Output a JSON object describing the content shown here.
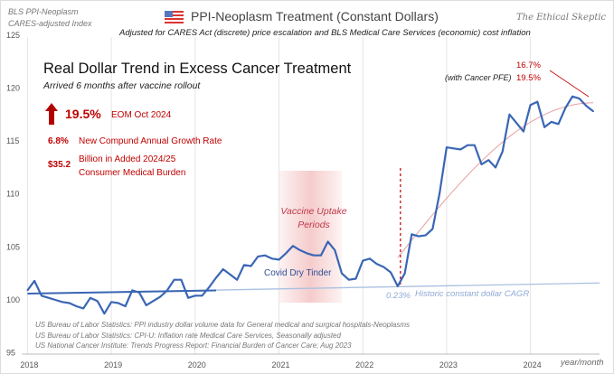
{
  "header": {
    "corner_label_1": "BLS PPI-Neoplasm",
    "corner_label_2": "CARES-adjusted Index",
    "title": "PPI-Neoplasm  Treatment",
    "title_suffix": "(Constant Dollars)",
    "subtitle": "Adjusted for CARES Act (discrete)  price escalation and BLS Medical Care Services (economic) cost inflation",
    "brand": "The Ethical Skeptic",
    "flag_icon": "us-flag-icon"
  },
  "annotations": {
    "headline": "Real Dollar Trend in Excess Cancer Treatment",
    "headline_sub": "Arrived 6 months after vaccine rollout",
    "big_pct": "19.5%",
    "big_pct_label": "EOM Oct 2024",
    "cagr_value": "6.8%",
    "cagr_label": "New Compund Annual Growth Rate",
    "burden_value": "$35.2",
    "burden_label_1": "Billion in Added 2024/25",
    "burden_label_2": "Consumer Medical Burden",
    "pfe_pct_1": "16.7%",
    "pfe_label": "(with Cancer PFE)",
    "pfe_pct_2": "19.5%",
    "vaccine_label_1": "Vaccine Uptake",
    "vaccine_label_2": "Periods",
    "covid_label": "Covid Dry Tinder",
    "cagr_hist_value": "0.23%",
    "cagr_hist_label": "Historic constant dollar CAGR",
    "source_1": "US Bureau of Labor Statistics: PPI industry dollar volume data for General medical and surgical hospitals-Neoplasms",
    "source_2": "US Bureau of Labor Statistics: CPI-U: Inflation rate Medical Care Services, Seasonally adjusted",
    "source_3": "US National Cancer Institute: Trends Progress Report: Financial Burden of Cancer Care; Aug 2023",
    "xaxis_unit": "year/month"
  },
  "colors": {
    "line": "#3a66b5",
    "accent": "#c00000",
    "band": "#f4c6c6",
    "cagr": "#aac0e0",
    "trend": "#e8a0a0"
  },
  "chart_data": {
    "type": "line",
    "title": "PPI-Neoplasm Treatment (Constant Dollars)",
    "xlabel": "year/month",
    "ylabel": "BLS PPI-Neoplasm CARES-adjusted Index",
    "ylim": [
      95,
      125
    ],
    "yticks": [
      "95",
      "100",
      "105",
      "110",
      "115",
      "120",
      "125"
    ],
    "xticks": [
      "2018",
      "2019",
      "2020",
      "2021",
      "2022",
      "2023",
      "2024"
    ],
    "start": "2018-01",
    "series": [
      {
        "name": "PPI-Neoplasm (constant dollars)",
        "values": [
          100.9,
          101.8,
          100.4,
          100.2,
          100.0,
          99.8,
          99.7,
          99.4,
          99.2,
          100.2,
          99.9,
          98.7,
          99.8,
          99.7,
          99.4,
          100.9,
          100.7,
          99.5,
          99.9,
          100.3,
          100.9,
          101.9,
          101.9,
          100.2,
          100.4,
          100.4,
          101.2,
          102.1,
          102.9,
          102.4,
          101.9,
          103.3,
          103.2,
          104.1,
          104.2,
          103.9,
          103.8,
          104.4,
          105.1,
          104.7,
          104.4,
          104.2,
          104.2,
          105.5,
          104.7,
          102.5,
          101.9,
          102.0,
          103.7,
          103.9,
          103.4,
          103.1,
          102.6,
          101.3,
          102.5,
          106.2,
          106.0,
          106.1,
          106.7,
          110.1,
          114.4,
          114.3,
          114.2,
          114.6,
          114.6,
          112.8,
          113.2,
          112.5,
          114.0,
          117.5,
          116.7,
          115.9,
          118.4,
          118.7,
          116.3,
          116.8,
          116.6,
          118.1,
          119.2,
          119.0,
          118.3,
          117.8
        ]
      }
    ],
    "historic_cagr_line": {
      "start_value": 100.6,
      "end_value": 101.6
    },
    "pre_trend_segment": {
      "start_value": 100.6,
      "end_value": 100.9,
      "end_month": "2020-04"
    },
    "post_trend_curve": {
      "start_month": "2022-06",
      "start_value": 104.0,
      "end_value": 118.6
    },
    "vaccine_band": {
      "from": "2021-01",
      "to": "2021-10"
    },
    "inflection_month": "2022-06"
  }
}
